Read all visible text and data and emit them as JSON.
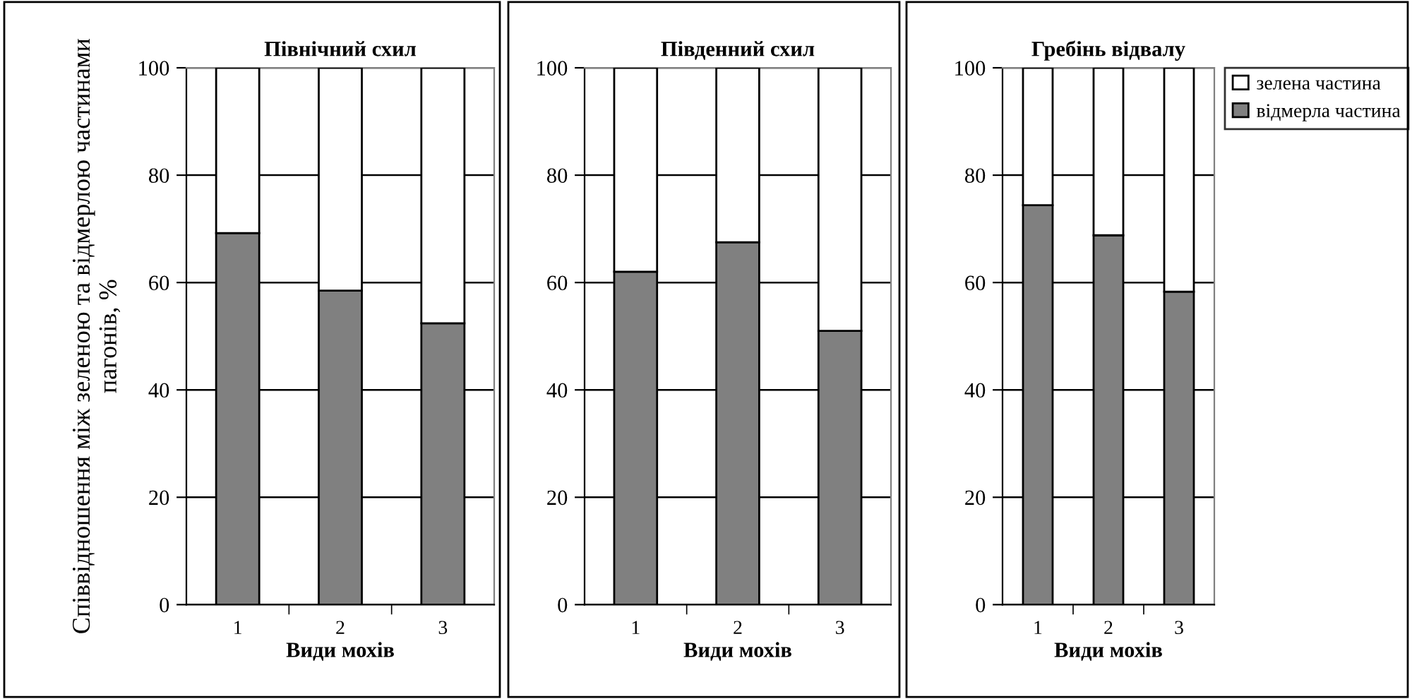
{
  "chart_data": [
    {
      "type": "bar",
      "stacked": true,
      "title": "Північний схил",
      "xlabel": "Види мохів",
      "ylabel": "Співвідношення між зеленою та відмерлою частинами пагонів, %",
      "categories": [
        "1",
        "2",
        "3"
      ],
      "ylim": [
        0,
        100
      ],
      "yticks": [
        0,
        20,
        40,
        60,
        80,
        100
      ],
      "grid": "y",
      "series": [
        {
          "color": "#808080",
          "values": [
            69.2,
            58.5,
            52.4
          ]
        },
        {
          "color": "#ffffff",
          "values": [
            30.8,
            41.5,
            47.6
          ]
        }
      ]
    },
    {
      "type": "bar",
      "stacked": true,
      "title": "Південний схил",
      "xlabel": "Види мохів",
      "categories": [
        "1",
        "2",
        "3"
      ],
      "ylim": [
        0,
        100
      ],
      "yticks": [
        0,
        20,
        40,
        60,
        80,
        100
      ],
      "grid": "y",
      "series": [
        {
          "color": "#808080",
          "values": [
            62.0,
            67.5,
            51.0
          ]
        },
        {
          "color": "#ffffff",
          "values": [
            38.0,
            32.5,
            49.0
          ]
        }
      ]
    },
    {
      "type": "bar",
      "stacked": true,
      "title": "Гребінь відвалу",
      "xlabel": "Види мохів",
      "categories": [
        "1",
        "2",
        "3"
      ],
      "ylim": [
        0,
        100
      ],
      "yticks": [
        0,
        20,
        40,
        60,
        80,
        100
      ],
      "grid": "y",
      "legend": "right",
      "series": [
        {
          "name": "відмерла частина",
          "color": "#808080",
          "values": [
            74.4,
            68.8,
            58.3
          ]
        },
        {
          "name": "зелена частина",
          "color": "#ffffff",
          "values": [
            25.6,
            31.2,
            41.7
          ]
        }
      ]
    }
  ]
}
